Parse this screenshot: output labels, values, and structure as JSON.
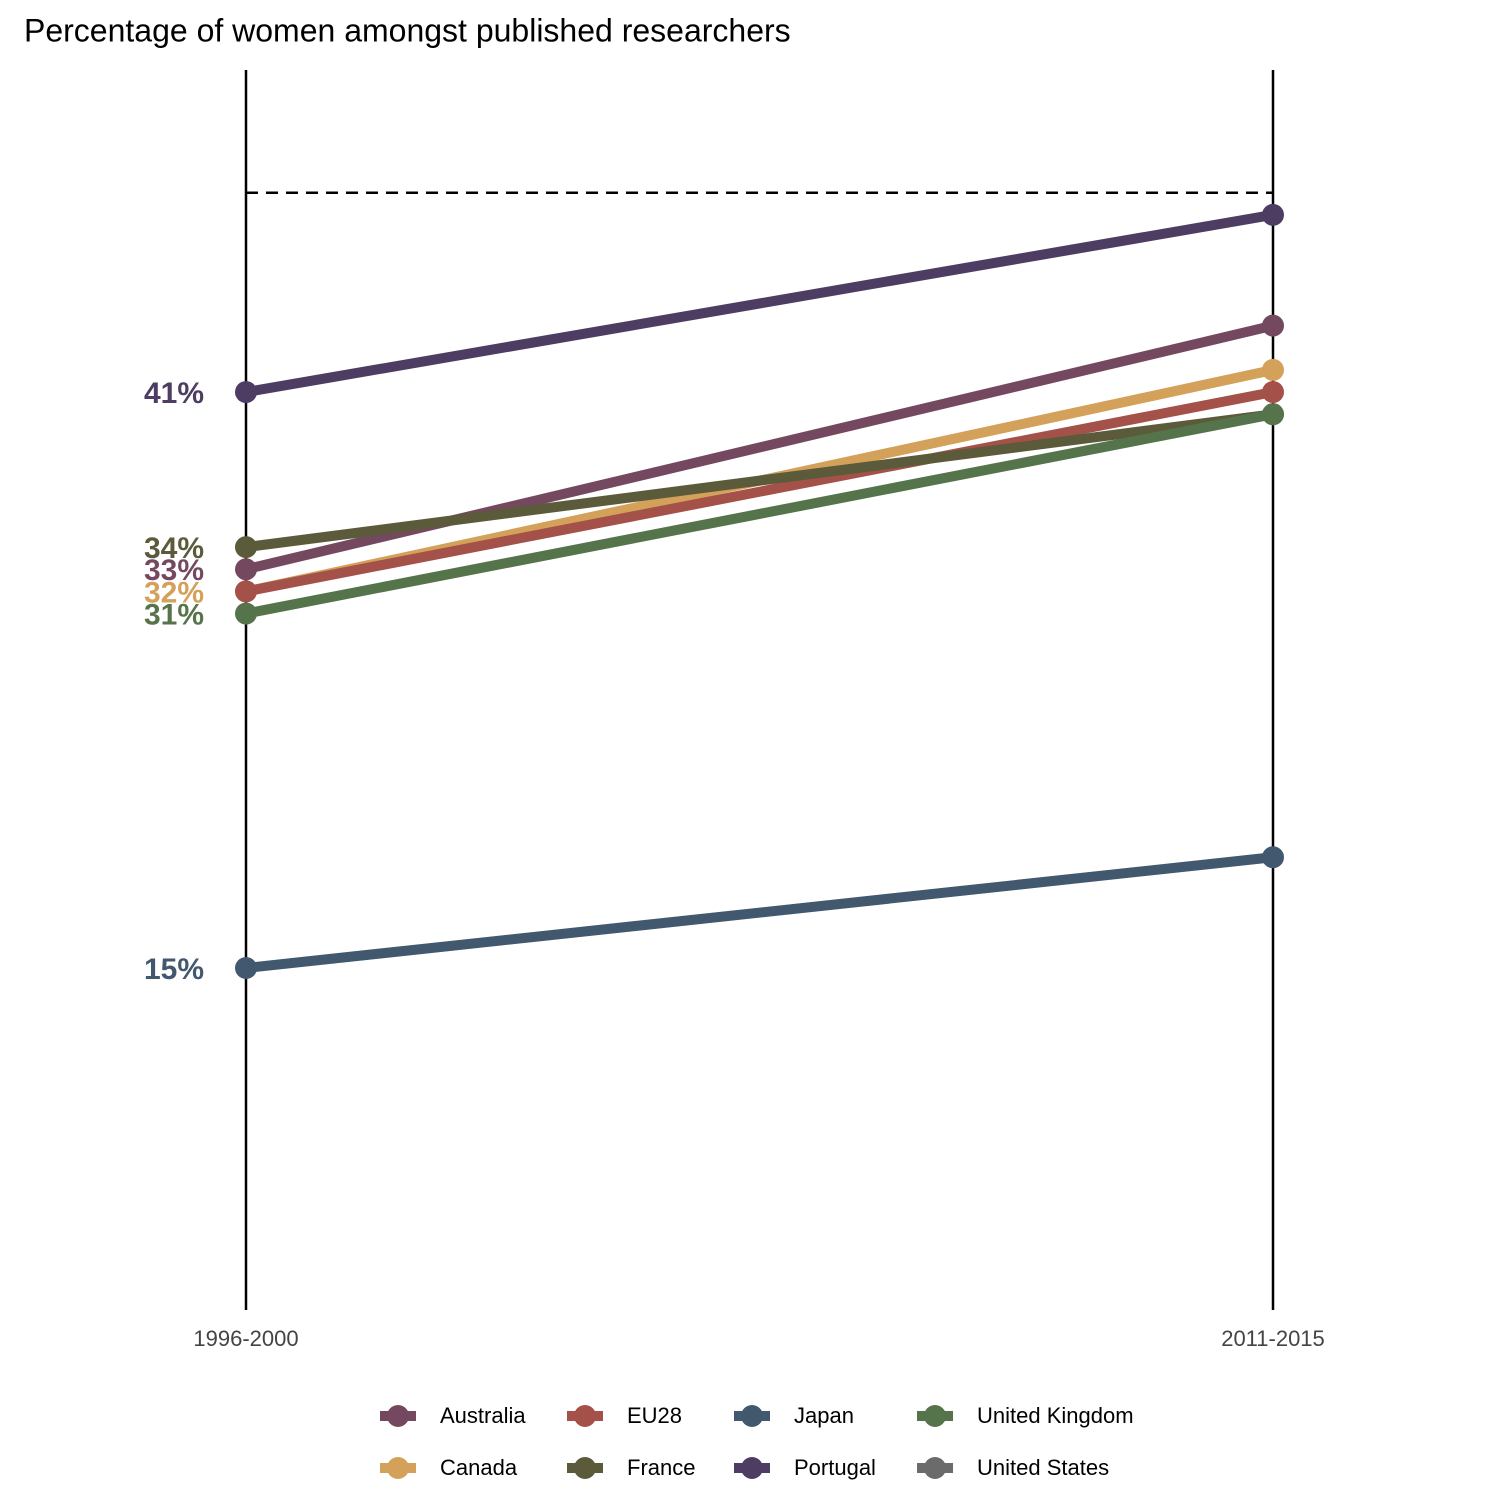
{
  "chart_data": {
    "type": "line",
    "title": "Percentage of women amongst published researchers",
    "categories": [
      "1996-2000",
      "2011-2015"
    ],
    "series": [
      {
        "name": "Australia",
        "color": "#74495f",
        "values": [
          33,
          44
        ],
        "value_labels": [
          "33%",
          null
        ]
      },
      {
        "name": "Canada",
        "color": "#d4a15a",
        "values": [
          32,
          42
        ],
        "value_labels": [
          "32%",
          null
        ]
      },
      {
        "name": "EU28",
        "color": "#a4514a",
        "values": [
          32,
          41
        ]
      },
      {
        "name": "France",
        "color": "#5b5a3a",
        "values": [
          34,
          40
        ],
        "value_labels": [
          "34%",
          null
        ]
      },
      {
        "name": "Japan",
        "color": "#42586e",
        "values": [
          15,
          20
        ],
        "value_labels": [
          "15%",
          null
        ]
      },
      {
        "name": "Portugal",
        "color": "#4d3d63",
        "values": [
          41,
          49
        ],
        "value_labels": [
          "41%",
          null
        ]
      },
      {
        "name": "United Kingdom",
        "color": "#56744b",
        "values": [
          31,
          40
        ],
        "value_labels": [
          "31%",
          null
        ]
      },
      {
        "name": "United States",
        "color": "#6b6b6b",
        "values": [
          null,
          null
        ]
      }
    ],
    "hline": 50,
    "ylim": [
      -0.44,
      55.54
    ],
    "legend": "bottom"
  }
}
